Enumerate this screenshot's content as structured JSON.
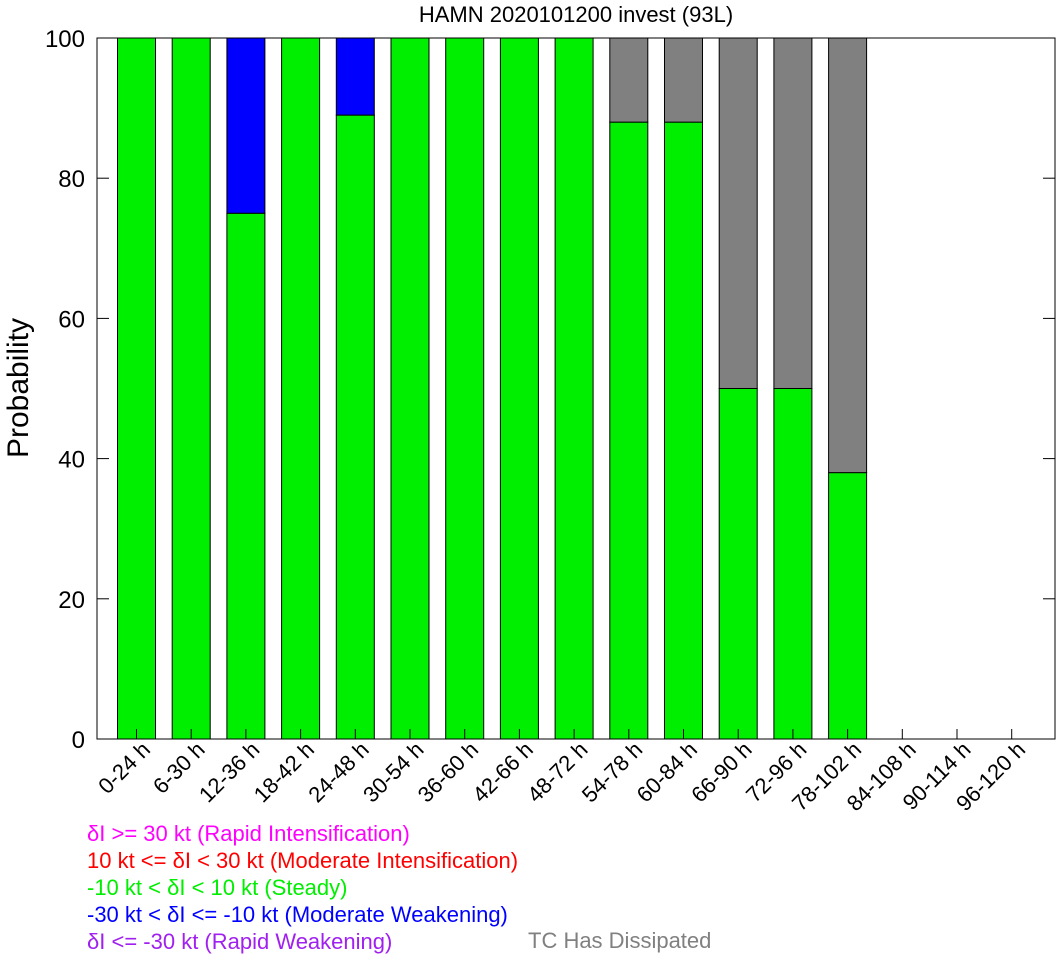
{
  "chart_data": {
    "type": "bar",
    "stacked": true,
    "title": "HAMN 2020101200 invest (93L)",
    "xlabel": "",
    "ylabel": "Probability",
    "ylim": [
      0,
      100
    ],
    "yticks": [
      "0",
      "20",
      "40",
      "60",
      "80",
      "100"
    ],
    "categories": [
      "0-24 h",
      "6-30 h",
      "12-36 h",
      "18-42 h",
      "24-48 h",
      "30-54 h",
      "36-60 h",
      "42-66 h",
      "48-72 h",
      "54-78 h",
      "60-84 h",
      "66-90 h",
      "72-96 h",
      "78-102 h",
      "84-108 h",
      "90-114 h",
      "96-120 h"
    ],
    "series": [
      {
        "key": "steady",
        "color": "#00ee00",
        "values": [
          100,
          100,
          75,
          100,
          89,
          100,
          100,
          100,
          100,
          88,
          88,
          50,
          50,
          38,
          0,
          0,
          0
        ]
      },
      {
        "key": "moderate_weakening",
        "color": "#0000ff",
        "values": [
          0,
          0,
          25,
          0,
          11,
          0,
          0,
          0,
          0,
          0,
          0,
          0,
          0,
          0,
          0,
          0,
          0
        ]
      },
      {
        "key": "dissipated",
        "color": "#808080",
        "values": [
          0,
          0,
          0,
          0,
          0,
          0,
          0,
          0,
          0,
          12,
          12,
          50,
          50,
          62,
          0,
          0,
          0
        ]
      }
    ],
    "legend": [
      {
        "text": "δI >= 30 kt (Rapid Intensification)",
        "color": "#ff00ff"
      },
      {
        "text": "10 kt <= δI < 30 kt (Moderate Intensification)",
        "color": "#ff0000"
      },
      {
        "text": "-10 kt < δI < 10 kt (Steady)",
        "color": "#00ee00"
      },
      {
        "text": "-30 kt < δI <= -10 kt (Moderate Weakening)",
        "color": "#0000ff"
      },
      {
        "text": "δI <= -30 kt (Rapid Weakening)",
        "color": "#a020f0"
      }
    ],
    "dissipated_label": {
      "text": "TC Has Dissipated",
      "color": "#808080"
    }
  }
}
